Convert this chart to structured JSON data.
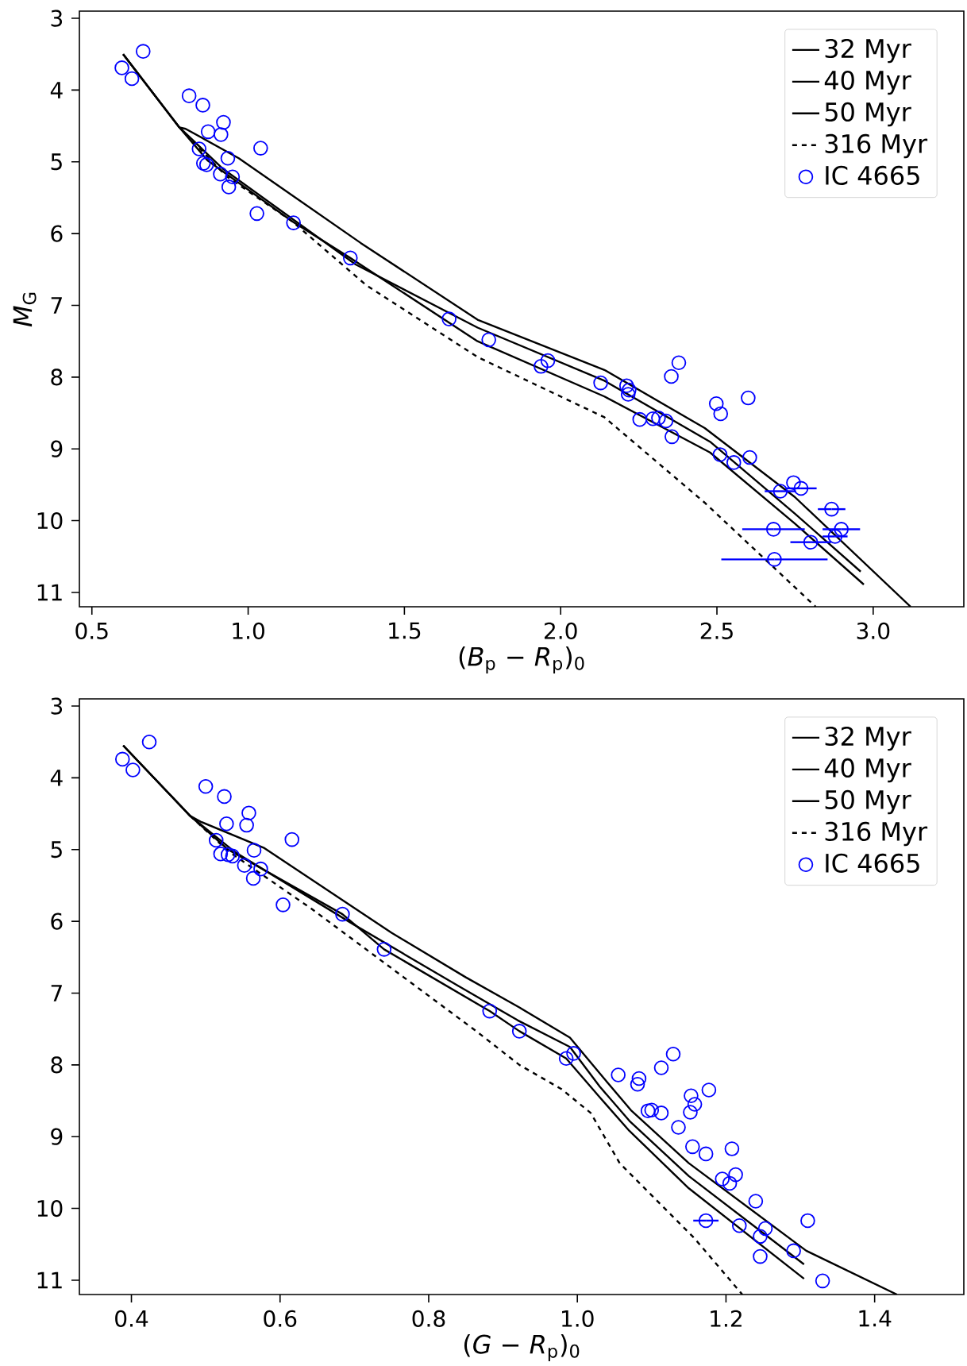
{
  "chart_data": [
    {
      "type": "scatter",
      "xlabel": "(*B*$_{p}$ − *R*$_{p}$)$_{0}$",
      "ylabel": "*M*$_{G}$",
      "xlim": [
        0.46,
        3.29
      ],
      "ylim": [
        11.2,
        2.9
      ],
      "xticks": [
        0.5,
        {
          "value": 1,
          "label": "1.0"
        },
        1.5,
        {
          "value": 2,
          "label": "2.0"
        },
        2.5,
        {
          "value": 3,
          "label": "3.0"
        }
      ],
      "yticks": [
        3,
        4,
        5,
        6,
        7,
        8,
        9,
        10,
        11
      ],
      "legend": "top right",
      "series": [
        {
          "name": "32 Myr",
          "type": "line",
          "line_style": "solid",
          "marker": "none",
          "color": "#000000",
          "x": [
            0.6,
            0.78,
            0.8,
            0.97,
            1.36,
            1.734,
            2.14,
            2.461,
            2.749,
            3.12
          ],
          "values": [
            3.5,
            4.52,
            4.54,
            4.95,
            6.13,
            7.2,
            7.9,
            8.71,
            9.67,
            11.2
          ]
        },
        {
          "name": "40 Myr",
          "type": "line",
          "line_style": "solid",
          "marker": "none",
          "color": "#000000",
          "x": [
            0.6,
            0.78,
            0.92,
            1.344,
            1.734,
            2.14,
            2.478,
            2.749,
            2.96
          ],
          "values": [
            3.5,
            4.52,
            5.1,
            6.43,
            7.31,
            8.05,
            8.9,
            9.9,
            10.71
          ]
        },
        {
          "name": "50 Myr",
          "type": "line",
          "line_style": "solid",
          "marker": "none",
          "color": "#000000",
          "x": [
            0.6,
            0.78,
            0.87,
            1.141,
            1.327,
            1.734,
            2.14,
            2.478,
            2.749,
            2.97
          ],
          "values": [
            3.5,
            4.52,
            4.98,
            5.83,
            6.34,
            7.5,
            8.27,
            9.05,
            10.04,
            10.89
          ]
        },
        {
          "name": "316 Myr",
          "type": "line",
          "line_style": "dashed",
          "marker": "none",
          "color": "#000000",
          "x": [
            0.78,
            0.93,
            1.141,
            1.378,
            1.734,
            2.14,
            2.461,
            2.816
          ],
          "values": [
            4.52,
            5.2,
            5.83,
            6.72,
            7.72,
            8.56,
            9.75,
            11.2
          ]
        },
        {
          "name": "IC 4665",
          "marker": "circle",
          "color": "#0000ff",
          "x": [
            0.596,
            0.628,
            0.664,
            0.811,
            0.855,
            0.921,
            0.872,
            0.913,
            1.04,
            0.843,
            0.935,
            0.857,
            0.867,
            0.911,
            0.95,
            0.938,
            1.028,
            1.145,
            1.327,
            1.643,
            1.77,
            1.937,
            1.959,
            2.128,
            2.211,
            2.219,
            2.216,
            2.253,
            2.295,
            2.313,
            2.337,
            2.356,
            2.354,
            2.378,
            2.498,
            2.512,
            2.6,
            2.51,
            2.554,
            2.605,
            2.703,
            2.745,
            2.769,
            2.867,
            2.681,
            2.898,
            2.878,
            2.8,
            2.684
          ],
          "values": [
            3.69,
            3.84,
            3.46,
            4.08,
            4.21,
            4.45,
            4.58,
            4.62,
            4.81,
            4.82,
            4.95,
            5.02,
            5.04,
            5.17,
            5.21,
            5.35,
            5.72,
            5.85,
            6.34,
            7.19,
            7.48,
            7.85,
            7.77,
            8.08,
            8.12,
            8.18,
            8.24,
            8.59,
            8.58,
            8.57,
            8.61,
            8.83,
            7.99,
            7.8,
            8.37,
            8.51,
            8.29,
            9.08,
            9.19,
            9.12,
            9.59,
            9.47,
            9.55,
            9.84,
            10.12,
            10.12,
            10.22,
            10.3,
            10.54
          ],
          "xerrors": [
            null,
            null,
            null,
            null,
            null,
            null,
            null,
            null,
            null,
            null,
            null,
            null,
            null,
            null,
            null,
            null,
            null,
            null,
            null,
            null,
            null,
            null,
            null,
            null,
            null,
            null,
            null,
            null,
            null,
            null,
            null,
            null,
            null,
            null,
            null,
            null,
            null,
            null,
            null,
            null,
            0.05,
            null,
            0.05,
            0.044,
            0.1,
            0.06,
            0.04,
            0.065,
            0.17
          ]
        }
      ]
    },
    {
      "type": "scatter",
      "xlabel": "(*G* − *R*$_{p}$)$_{0}$",
      "xlim": [
        0.33,
        1.52
      ],
      "ylim": [
        11.2,
        2.9
      ],
      "xticks": [
        0.4,
        0.6,
        0.8,
        {
          "value": 1,
          "label": "1.0"
        },
        1.2,
        1.4
      ],
      "yticks": [
        3,
        4,
        5,
        6,
        7,
        8,
        9,
        10,
        11
      ],
      "legend": "top right",
      "series": [
        {
          "name": "32 Myr",
          "type": "line",
          "line_style": "solid",
          "marker": "none",
          "color": "#000000",
          "x": [
            0.389,
            0.479,
            0.493,
            0.579,
            0.75,
            0.85,
            0.922,
            0.99,
            1.036,
            1.072,
            1.15,
            1.308,
            1.43
          ],
          "values": [
            3.55,
            4.53,
            4.61,
            4.98,
            6.16,
            6.78,
            7.2,
            7.62,
            8.19,
            8.63,
            9.37,
            10.59,
            11.2
          ]
        },
        {
          "name": "40 Myr",
          "type": "line",
          "line_style": "solid",
          "marker": "none",
          "color": "#000000",
          "x": [
            0.389,
            0.479,
            0.54,
            0.7,
            0.84,
            0.92,
            0.99,
            1.03,
            1.07,
            1.15,
            1.305
          ],
          "values": [
            3.55,
            4.53,
            5.04,
            6.05,
            6.9,
            7.38,
            7.75,
            8.3,
            8.78,
            9.55,
            10.78
          ]
        },
        {
          "name": "50 Myr",
          "type": "line",
          "line_style": "solid",
          "marker": "none",
          "color": "#000000",
          "x": [
            0.389,
            0.479,
            0.53,
            0.684,
            0.74,
            0.882,
            0.922,
            0.985,
            1.03,
            1.07,
            1.15,
            1.305
          ],
          "values": [
            3.55,
            4.53,
            5.0,
            5.9,
            6.39,
            7.25,
            7.53,
            7.91,
            8.45,
            8.92,
            9.72,
            10.98
          ]
        },
        {
          "name": "316 Myr",
          "type": "line",
          "line_style": "dashed",
          "marker": "none",
          "color": "#000000",
          "x": [
            0.479,
            0.53,
            0.643,
            0.864,
            0.922,
            0.979,
            1.018,
            1.057,
            1.157,
            1.222
          ],
          "values": [
            4.53,
            5.02,
            5.83,
            7.53,
            8.0,
            8.34,
            8.67,
            9.37,
            10.41,
            11.2
          ]
        },
        {
          "name": "IC 4665",
          "marker": "circle",
          "color": "#0000ff",
          "x": [
            0.388,
            0.402,
            0.424,
            0.5,
            0.525,
            0.558,
            0.555,
            0.528,
            0.616,
            0.514,
            0.565,
            0.52,
            0.53,
            0.536,
            0.552,
            0.574,
            0.564,
            0.604,
            0.684,
            0.74,
            0.882,
            0.922,
            0.985,
            0.995,
            1.055,
            1.083,
            1.081,
            1.113,
            1.129,
            1.095,
            1.1,
            1.113,
            1.136,
            1.153,
            1.158,
            1.152,
            1.177,
            1.155,
            1.173,
            1.208,
            1.195,
            1.205,
            1.213,
            1.24,
            1.173,
            1.218,
            1.246,
            1.253,
            1.31,
            1.291,
            1.246,
            1.33
          ],
          "values": [
            3.74,
            3.89,
            3.5,
            4.12,
            4.26,
            4.49,
            4.66,
            4.64,
            4.86,
            4.87,
            5.01,
            5.06,
            5.07,
            5.09,
            5.22,
            5.27,
            5.4,
            5.77,
            5.9,
            6.39,
            7.25,
            7.53,
            7.91,
            7.84,
            8.14,
            8.19,
            8.27,
            8.04,
            7.85,
            8.64,
            8.63,
            8.67,
            8.87,
            8.43,
            8.55,
            8.66,
            8.35,
            9.14,
            9.24,
            9.17,
            9.59,
            9.65,
            9.53,
            9.9,
            10.17,
            10.24,
            10.39,
            10.28,
            10.17,
            10.59,
            10.67,
            11.01
          ],
          "xerrors": [
            null,
            null,
            null,
            null,
            null,
            null,
            null,
            null,
            null,
            null,
            null,
            null,
            null,
            null,
            null,
            null,
            null,
            null,
            null,
            null,
            null,
            null,
            null,
            null,
            null,
            null,
            null,
            null,
            null,
            null,
            null,
            null,
            null,
            null,
            null,
            null,
            null,
            null,
            null,
            null,
            null,
            null,
            null,
            null,
            0.017,
            null,
            null,
            null,
            null,
            null,
            null,
            null
          ]
        }
      ]
    }
  ]
}
